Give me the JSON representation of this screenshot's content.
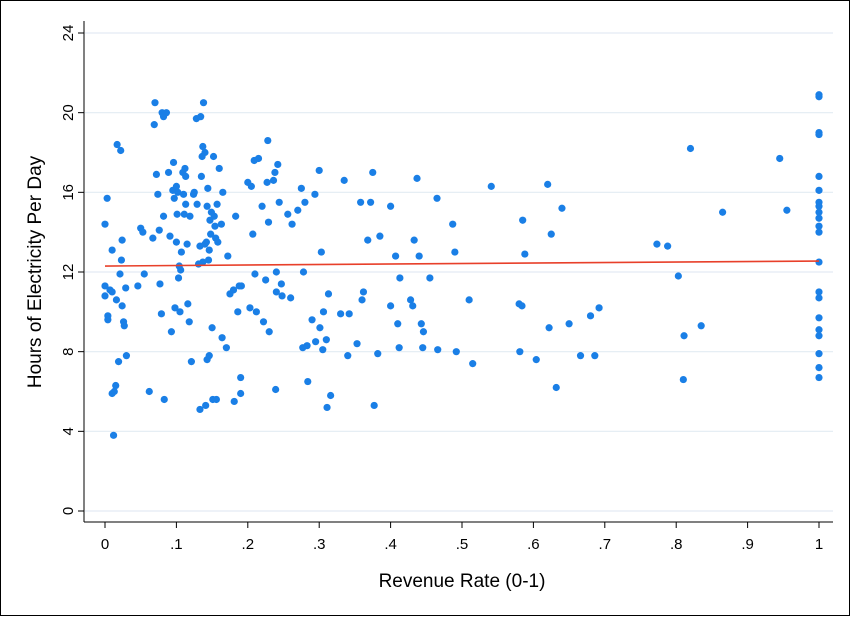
{
  "chart_data": {
    "type": "scatter",
    "title": "",
    "xlabel": "Revenue Rate (0-1)",
    "ylabel": "Hours of Electricity Per Day",
    "xlim": [
      0,
      1
    ],
    "ylim": [
      0,
      24
    ],
    "grid": "horizontal",
    "legend": "none",
    "x_ticks": [
      0,
      0.1,
      0.2,
      0.3,
      0.4,
      0.5,
      0.6,
      0.7,
      0.8,
      0.9,
      1
    ],
    "x_tick_labels": [
      "0",
      ".1",
      ".2",
      ".3",
      ".4",
      ".5",
      ".6",
      ".7",
      ".8",
      ".9",
      "1"
    ],
    "y_ticks": [
      0,
      4,
      8,
      12,
      16,
      20,
      24
    ],
    "y_tick_labels": [
      "0",
      "4",
      "8",
      "12",
      "16",
      "20",
      "24"
    ],
    "colors": {
      "points": "#1a7fe6",
      "fit_line": "#e8402a",
      "grid": "#e3ebf3"
    },
    "fit_line": {
      "x": [
        0,
        1
      ],
      "y": [
        12.3,
        12.55
      ]
    },
    "points": [
      [
        0.0,
        14.4
      ],
      [
        0.003,
        15.7
      ],
      [
        0.0,
        11.3
      ],
      [
        0.0,
        10.8
      ],
      [
        0.004,
        9.8
      ],
      [
        0.004,
        9.6
      ],
      [
        0.007,
        11.1
      ],
      [
        0.01,
        11.0
      ],
      [
        0.01,
        13.1
      ],
      [
        0.01,
        5.9
      ],
      [
        0.012,
        3.8
      ],
      [
        0.013,
        6.0
      ],
      [
        0.015,
        6.3
      ],
      [
        0.016,
        10.6
      ],
      [
        0.017,
        18.4
      ],
      [
        0.019,
        7.5
      ],
      [
        0.021,
        11.9
      ],
      [
        0.022,
        18.1
      ],
      [
        0.023,
        12.6
      ],
      [
        0.024,
        13.6
      ],
      [
        0.024,
        10.3
      ],
      [
        0.026,
        9.5
      ],
      [
        0.027,
        9.3
      ],
      [
        0.029,
        11.2
      ],
      [
        0.03,
        7.8
      ],
      [
        0.046,
        11.3
      ],
      [
        0.05,
        14.2
      ],
      [
        0.053,
        14.0
      ],
      [
        0.055,
        11.9
      ],
      [
        0.062,
        6.0
      ],
      [
        0.067,
        13.7
      ],
      [
        0.069,
        19.4
      ],
      [
        0.07,
        20.5
      ],
      [
        0.072,
        16.9
      ],
      [
        0.074,
        15.9
      ],
      [
        0.076,
        14.1
      ],
      [
        0.077,
        11.4
      ],
      [
        0.079,
        9.9
      ],
      [
        0.08,
        20.0
      ],
      [
        0.082,
        19.8
      ],
      [
        0.082,
        14.8
      ],
      [
        0.083,
        5.6
      ],
      [
        0.086,
        20.0
      ],
      [
        0.089,
        17.0
      ],
      [
        0.091,
        13.8
      ],
      [
        0.093,
        9.0
      ],
      [
        0.095,
        16.1
      ],
      [
        0.096,
        17.5
      ],
      [
        0.097,
        15.7
      ],
      [
        0.098,
        10.2
      ],
      [
        0.1,
        16.3
      ],
      [
        0.1,
        13.5
      ],
      [
        0.101,
        14.9
      ],
      [
        0.102,
        16.0
      ],
      [
        0.103,
        11.7
      ],
      [
        0.104,
        12.3
      ],
      [
        0.105,
        10.0
      ],
      [
        0.106,
        12.1
      ],
      [
        0.107,
        13.0
      ],
      [
        0.109,
        17.0
      ],
      [
        0.11,
        15.9
      ],
      [
        0.111,
        14.9
      ],
      [
        0.112,
        17.2
      ],
      [
        0.113,
        16.8
      ],
      [
        0.113,
        15.4
      ],
      [
        0.115,
        13.4
      ],
      [
        0.116,
        10.4
      ],
      [
        0.118,
        9.5
      ],
      [
        0.119,
        14.8
      ],
      [
        0.121,
        7.5
      ],
      [
        0.124,
        15.9
      ],
      [
        0.125,
        16.0
      ],
      [
        0.128,
        19.7
      ],
      [
        0.129,
        15.4
      ],
      [
        0.131,
        12.4
      ],
      [
        0.133,
        13.3
      ],
      [
        0.133,
        5.1
      ],
      [
        0.134,
        19.8
      ],
      [
        0.135,
        16.8
      ],
      [
        0.136,
        17.8
      ],
      [
        0.137,
        18.3
      ],
      [
        0.137,
        12.5
      ],
      [
        0.138,
        20.5
      ],
      [
        0.14,
        18.0
      ],
      [
        0.14,
        13.4
      ],
      [
        0.141,
        5.3
      ],
      [
        0.142,
        13.5
      ],
      [
        0.143,
        7.6
      ],
      [
        0.143,
        15.3
      ],
      [
        0.144,
        16.2
      ],
      [
        0.145,
        12.6
      ],
      [
        0.146,
        13.1
      ],
      [
        0.146,
        7.8
      ],
      [
        0.147,
        14.6
      ],
      [
        0.148,
        13.9
      ],
      [
        0.149,
        15.0
      ],
      [
        0.15,
        9.2
      ],
      [
        0.151,
        5.6
      ],
      [
        0.152,
        17.8
      ],
      [
        0.153,
        14.8
      ],
      [
        0.154,
        14.3
      ],
      [
        0.155,
        13.7
      ],
      [
        0.156,
        5.6
      ],
      [
        0.157,
        15.4
      ],
      [
        0.158,
        13.5
      ],
      [
        0.16,
        17.2
      ],
      [
        0.163,
        14.4
      ],
      [
        0.164,
        8.7
      ],
      [
        0.165,
        16.0
      ],
      [
        0.17,
        8.2
      ],
      [
        0.172,
        12.8
      ],
      [
        0.175,
        10.9
      ],
      [
        0.18,
        11.1
      ],
      [
        0.181,
        5.5
      ],
      [
        0.183,
        14.8
      ],
      [
        0.186,
        10.0
      ],
      [
        0.188,
        11.3
      ],
      [
        0.19,
        6.7
      ],
      [
        0.19,
        5.9
      ],
      [
        0.191,
        11.3
      ],
      [
        0.2,
        16.5
      ],
      [
        0.203,
        10.2
      ],
      [
        0.205,
        16.3
      ],
      [
        0.207,
        13.9
      ],
      [
        0.209,
        17.6
      ],
      [
        0.21,
        11.9
      ],
      [
        0.212,
        10.0
      ],
      [
        0.215,
        17.7
      ],
      [
        0.22,
        15.3
      ],
      [
        0.222,
        9.5
      ],
      [
        0.225,
        11.6
      ],
      [
        0.227,
        16.5
      ],
      [
        0.228,
        18.6
      ],
      [
        0.229,
        14.5
      ],
      [
        0.23,
        9.0
      ],
      [
        0.236,
        16.6
      ],
      [
        0.238,
        17.0
      ],
      [
        0.239,
        6.1
      ],
      [
        0.24,
        12.0
      ],
      [
        0.24,
        11.0
      ],
      [
        0.242,
        17.4
      ],
      [
        0.244,
        15.5
      ],
      [
        0.247,
        11.4
      ],
      [
        0.248,
        10.8
      ],
      [
        0.256,
        14.9
      ],
      [
        0.26,
        10.7
      ],
      [
        0.262,
        14.4
      ],
      [
        0.27,
        15.1
      ],
      [
        0.275,
        16.2
      ],
      [
        0.277,
        8.2
      ],
      [
        0.278,
        12.0
      ],
      [
        0.28,
        15.5
      ],
      [
        0.283,
        8.3
      ],
      [
        0.284,
        6.5
      ],
      [
        0.29,
        9.6
      ],
      [
        0.294,
        15.9
      ],
      [
        0.295,
        8.5
      ],
      [
        0.3,
        17.1
      ],
      [
        0.301,
        9.2
      ],
      [
        0.303,
        13.0
      ],
      [
        0.305,
        8.1
      ],
      [
        0.306,
        10.0
      ],
      [
        0.31,
        8.6
      ],
      [
        0.311,
        5.2
      ],
      [
        0.313,
        10.9
      ],
      [
        0.316,
        5.8
      ],
      [
        0.33,
        9.9
      ],
      [
        0.335,
        16.6
      ],
      [
        0.34,
        7.8
      ],
      [
        0.342,
        9.9
      ],
      [
        0.353,
        8.4
      ],
      [
        0.358,
        15.5
      ],
      [
        0.36,
        10.6
      ],
      [
        0.362,
        11.0
      ],
      [
        0.368,
        13.6
      ],
      [
        0.372,
        15.5
      ],
      [
        0.375,
        17.0
      ],
      [
        0.377,
        5.3
      ],
      [
        0.382,
        7.9
      ],
      [
        0.385,
        13.8
      ],
      [
        0.4,
        10.3
      ],
      [
        0.4,
        15.3
      ],
      [
        0.407,
        12.8
      ],
      [
        0.41,
        9.4
      ],
      [
        0.412,
        8.2
      ],
      [
        0.413,
        11.7
      ],
      [
        0.428,
        10.6
      ],
      [
        0.431,
        10.3
      ],
      [
        0.433,
        13.6
      ],
      [
        0.437,
        16.7
      ],
      [
        0.44,
        12.8
      ],
      [
        0.443,
        9.4
      ],
      [
        0.445,
        8.2
      ],
      [
        0.446,
        9.0
      ],
      [
        0.455,
        11.7
      ],
      [
        0.465,
        15.7
      ],
      [
        0.466,
        8.1
      ],
      [
        0.487,
        14.4
      ],
      [
        0.49,
        13.0
      ],
      [
        0.492,
        8.0
      ],
      [
        0.51,
        10.6
      ],
      [
        0.515,
        7.4
      ],
      [
        0.541,
        16.3
      ],
      [
        0.58,
        10.4
      ],
      [
        0.581,
        8.0
      ],
      [
        0.584,
        10.3
      ],
      [
        0.585,
        14.6
      ],
      [
        0.588,
        12.9
      ],
      [
        0.604,
        7.6
      ],
      [
        0.62,
        16.4
      ],
      [
        0.622,
        9.2
      ],
      [
        0.625,
        13.9
      ],
      [
        0.632,
        6.2
      ],
      [
        0.64,
        15.2
      ],
      [
        0.65,
        9.4
      ],
      [
        0.666,
        7.8
      ],
      [
        0.68,
        9.8
      ],
      [
        0.686,
        7.8
      ],
      [
        0.692,
        10.2
      ],
      [
        0.773,
        13.4
      ],
      [
        0.788,
        13.3
      ],
      [
        0.803,
        11.8
      ],
      [
        0.81,
        6.6
      ],
      [
        0.811,
        8.8
      ],
      [
        0.82,
        18.2
      ],
      [
        0.835,
        9.3
      ],
      [
        0.865,
        15.0
      ],
      [
        0.945,
        17.7
      ],
      [
        0.955,
        15.1
      ],
      [
        1.0,
        20.9
      ],
      [
        1.0,
        20.8
      ],
      [
        1.0,
        19.0
      ],
      [
        1.0,
        18.9
      ],
      [
        1.0,
        16.8
      ],
      [
        1.0,
        16.1
      ],
      [
        1.0,
        15.5
      ],
      [
        1.0,
        15.3
      ],
      [
        1.0,
        15.0
      ],
      [
        1.0,
        14.7
      ],
      [
        1.0,
        14.3
      ],
      [
        1.0,
        14.0
      ],
      [
        1.0,
        12.5
      ],
      [
        1.0,
        11.0
      ],
      [
        1.0,
        10.7
      ],
      [
        1.0,
        9.7
      ],
      [
        1.0,
        9.1
      ],
      [
        1.0,
        8.8
      ],
      [
        1.0,
        7.9
      ],
      [
        1.0,
        7.2
      ],
      [
        1.0,
        6.7
      ]
    ]
  }
}
